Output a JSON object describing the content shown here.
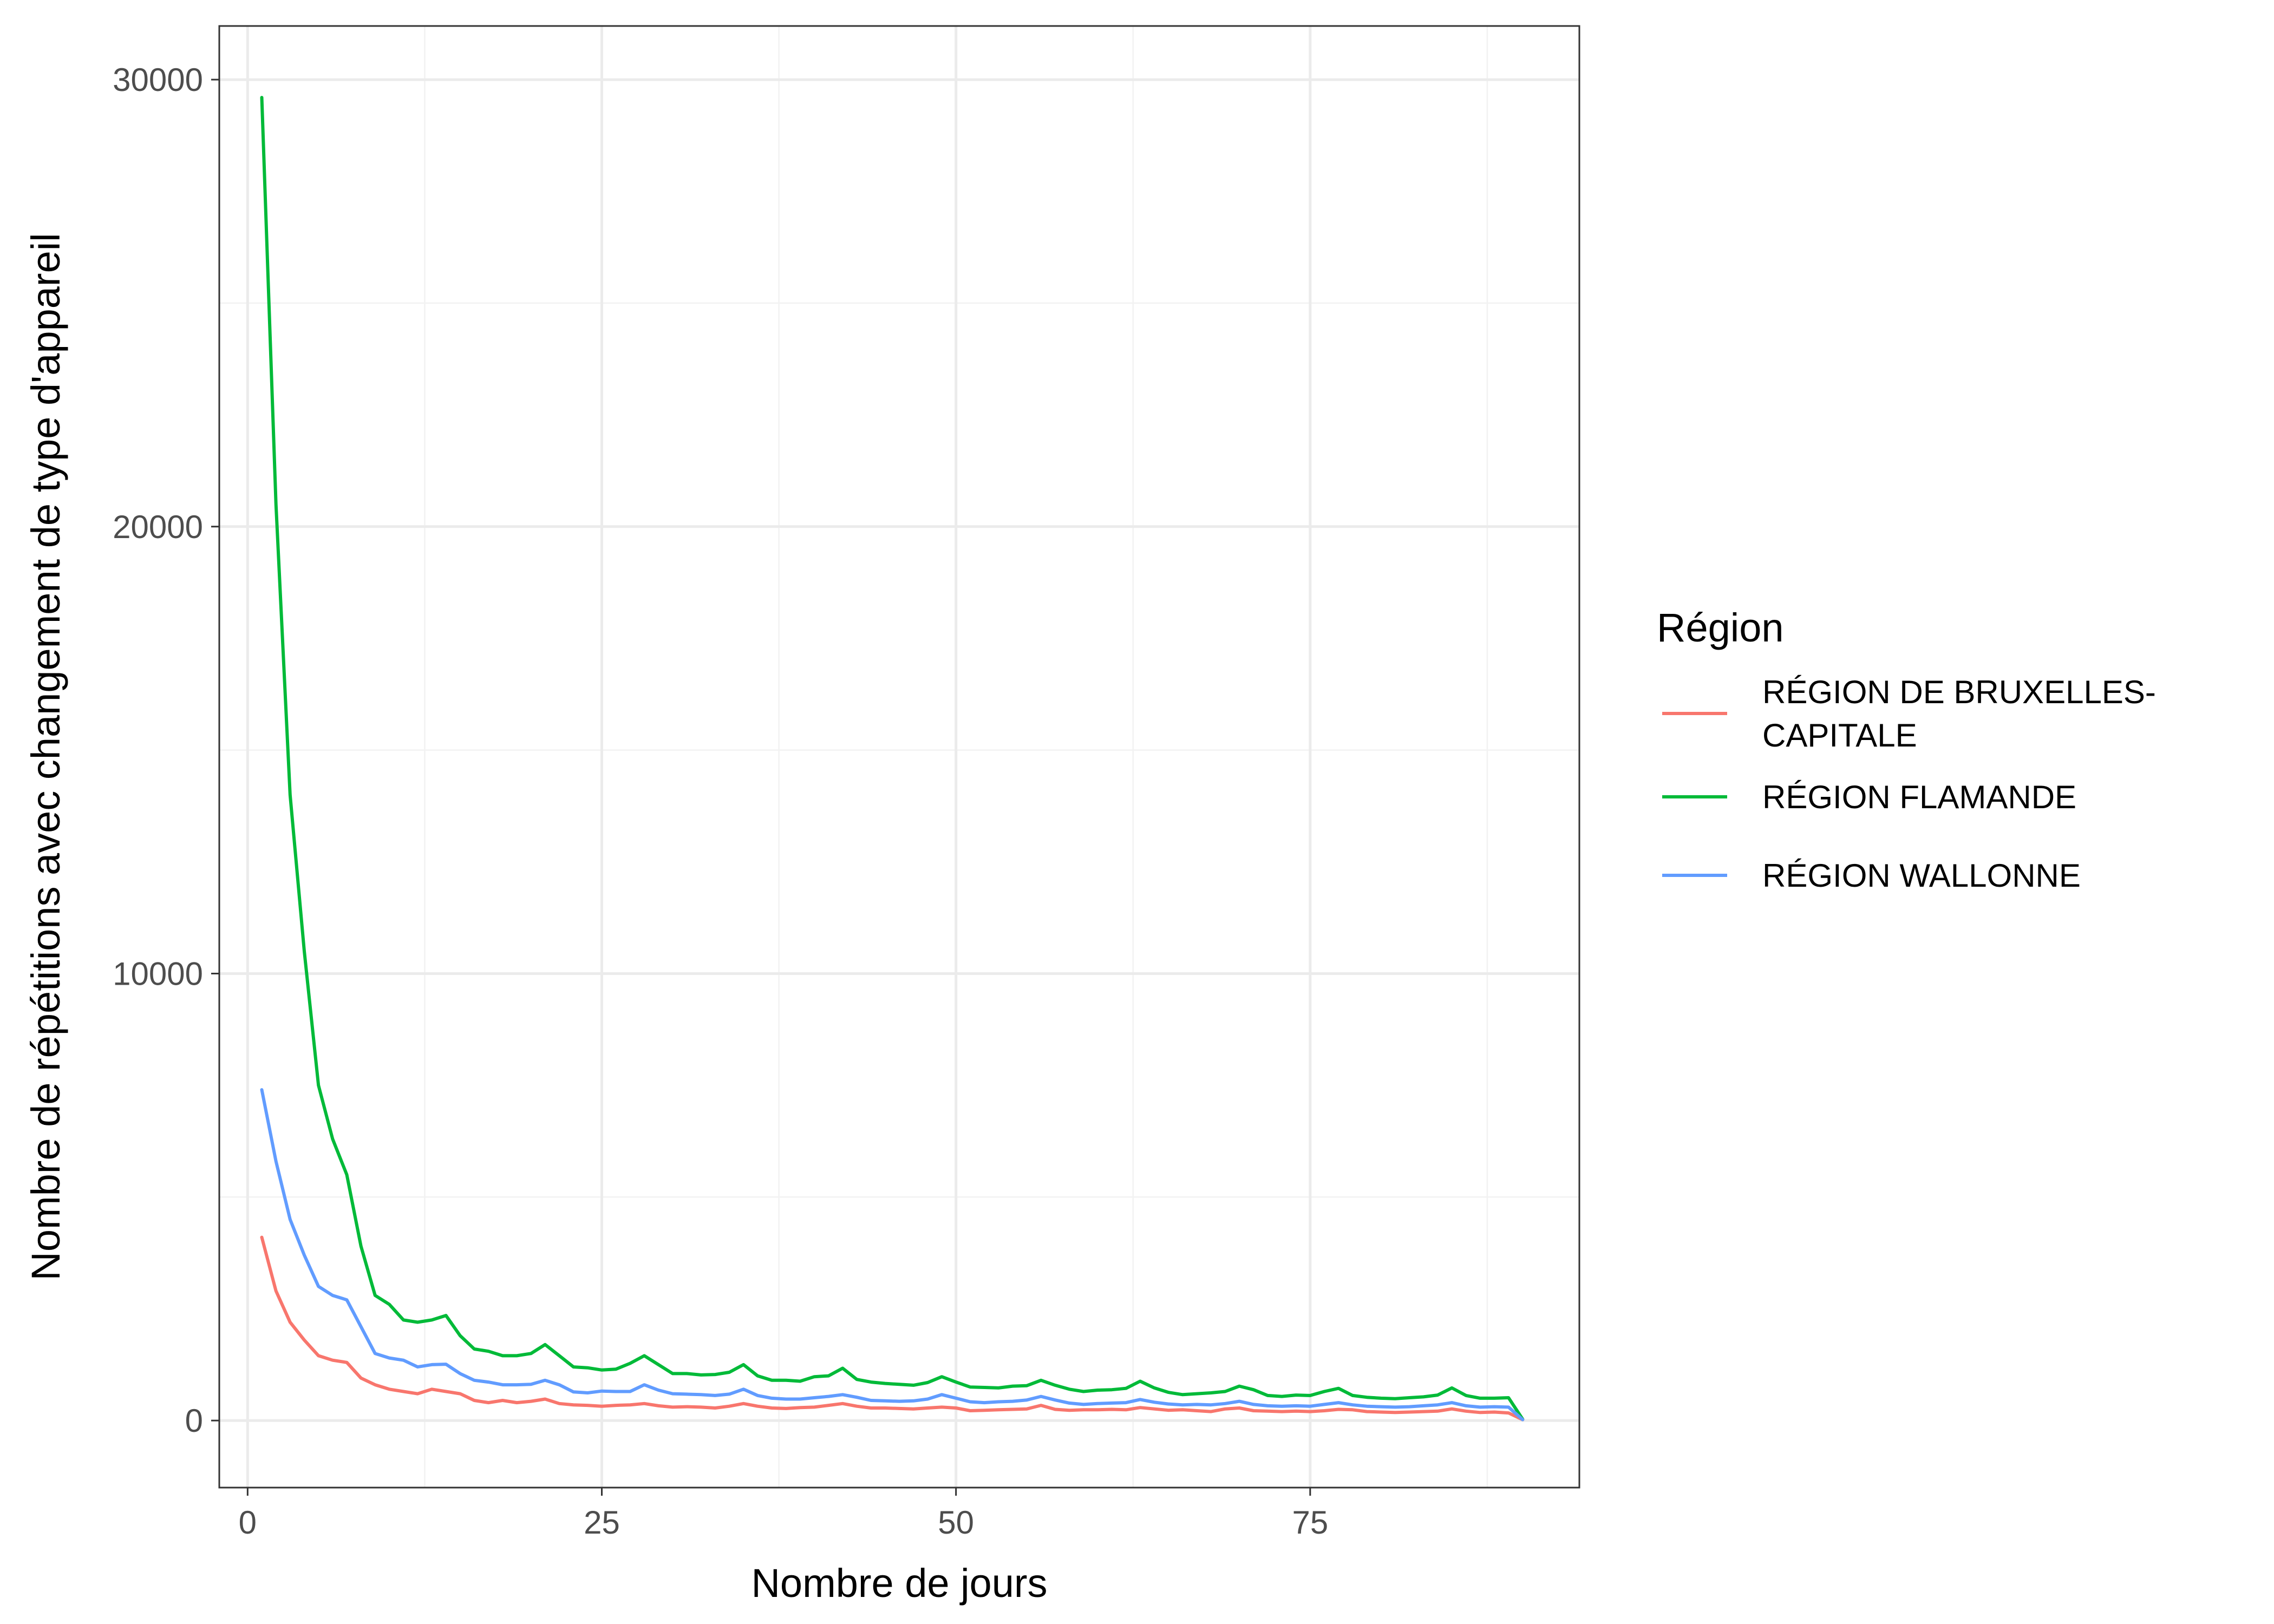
{
  "chart_data": {
    "type": "line",
    "xlabel": "Nombre de jours",
    "ylabel": "Nombre de répétitions avec changement de type d'appareil",
    "xlim": [
      -2,
      94
    ],
    "ylim": [
      -1500,
      31200
    ],
    "x_ticks": [
      0,
      25,
      50,
      75
    ],
    "x_minor_ticks": [
      12.5,
      37.5,
      62.5,
      87.5
    ],
    "y_ticks": [
      0,
      10000,
      20000,
      30000
    ],
    "y_minor_ticks": [
      5000,
      15000,
      25000
    ],
    "grid": true,
    "legend": {
      "title": "Région",
      "position": "right"
    },
    "series": [
      {
        "name": "RÉGION DE BRUXELLES-CAPITALE",
        "label_lines": [
          "RÉGION DE BRUXELLES-",
          "CAPITALE"
        ],
        "color": "#F8766D",
        "x": [
          1,
          2,
          3,
          4,
          5,
          6,
          7,
          8,
          9,
          10,
          11,
          12,
          13,
          14,
          15,
          16,
          17,
          18,
          19,
          20,
          21,
          22,
          23,
          24,
          25,
          26,
          27,
          28,
          29,
          30,
          31,
          32,
          33,
          34,
          35,
          36,
          37,
          38,
          39,
          40,
          41,
          42,
          43,
          44,
          45,
          46,
          47,
          48,
          49,
          50,
          51,
          52,
          53,
          54,
          55,
          56,
          57,
          58,
          59,
          60,
          61,
          62,
          63,
          64,
          65,
          66,
          67,
          68,
          69,
          70,
          71,
          72,
          73,
          74,
          75,
          76,
          77,
          78,
          79,
          80,
          81,
          82,
          83,
          84,
          85,
          86,
          87,
          88,
          89,
          90
        ],
        "y": [
          4100,
          2900,
          2200,
          1800,
          1450,
          1350,
          1300,
          950,
          800,
          700,
          650,
          600,
          700,
          650,
          600,
          450,
          400,
          450,
          400,
          430,
          480,
          380,
          350,
          340,
          320,
          340,
          350,
          380,
          330,
          300,
          310,
          300,
          280,
          320,
          380,
          320,
          280,
          270,
          290,
          300,
          340,
          380,
          320,
          280,
          280,
          270,
          260,
          280,
          300,
          280,
          220,
          230,
          240,
          250,
          260,
          340,
          250,
          230,
          240,
          240,
          250,
          240,
          290,
          260,
          230,
          240,
          220,
          200,
          260,
          280,
          220,
          210,
          200,
          210,
          200,
          220,
          250,
          240,
          200,
          190,
          180,
          190,
          200,
          210,
          260,
          210,
          180,
          190,
          170,
          20
        ]
      },
      {
        "name": "RÉGION FLAMANDE",
        "label_lines": [
          "RÉGION FLAMANDE"
        ],
        "color": "#00BA38",
        "x": [
          1,
          2,
          3,
          4,
          5,
          6,
          7,
          8,
          9,
          10,
          11,
          12,
          13,
          14,
          15,
          16,
          17,
          18,
          19,
          20,
          21,
          22,
          23,
          24,
          25,
          26,
          27,
          28,
          29,
          30,
          31,
          32,
          33,
          34,
          35,
          36,
          37,
          38,
          39,
          40,
          41,
          42,
          43,
          44,
          45,
          46,
          47,
          48,
          49,
          50,
          51,
          52,
          53,
          54,
          55,
          56,
          57,
          58,
          59,
          60,
          61,
          62,
          63,
          64,
          65,
          66,
          67,
          68,
          69,
          70,
          71,
          72,
          73,
          74,
          75,
          76,
          77,
          78,
          79,
          80,
          81,
          82,
          83,
          84,
          85,
          86,
          87,
          88,
          89,
          90
        ],
        "y": [
          29600,
          20500,
          14000,
          10500,
          7500,
          6300,
          5500,
          3900,
          2800,
          2600,
          2250,
          2200,
          2250,
          2350,
          1900,
          1600,
          1550,
          1450,
          1450,
          1500,
          1700,
          1450,
          1200,
          1180,
          1130,
          1150,
          1280,
          1450,
          1250,
          1050,
          1050,
          1020,
          1030,
          1080,
          1250,
          1000,
          900,
          900,
          880,
          980,
          1000,
          1170,
          920,
          860,
          830,
          810,
          790,
          850,
          980,
          860,
          750,
          740,
          730,
          770,
          780,
          900,
          790,
          700,
          650,
          680,
          690,
          720,
          880,
          730,
          630,
          580,
          600,
          620,
          650,
          770,
          690,
          560,
          540,
          570,
          560,
          650,
          720,
          560,
          520,
          500,
          490,
          510,
          530,
          570,
          730,
          560,
          500,
          500,
          510,
          30
        ]
      },
      {
        "name": "RÉGION WALLONNE",
        "label_lines": [
          "RÉGION WALLONNE"
        ],
        "color": "#619CFF",
        "x": [
          1,
          2,
          3,
          4,
          5,
          6,
          7,
          8,
          9,
          10,
          11,
          12,
          13,
          14,
          15,
          16,
          17,
          18,
          19,
          20,
          21,
          22,
          23,
          24,
          25,
          26,
          27,
          28,
          29,
          30,
          31,
          32,
          33,
          34,
          35,
          36,
          37,
          38,
          39,
          40,
          41,
          42,
          43,
          44,
          45,
          46,
          47,
          48,
          49,
          50,
          51,
          52,
          53,
          54,
          55,
          56,
          57,
          58,
          59,
          60,
          61,
          62,
          63,
          64,
          65,
          66,
          67,
          68,
          69,
          70,
          71,
          72,
          73,
          74,
          75,
          76,
          77,
          78,
          79,
          80,
          81,
          82,
          83,
          84,
          85,
          86,
          87,
          88,
          89,
          90
        ],
        "y": [
          7400,
          5800,
          4500,
          3700,
          3000,
          2800,
          2700,
          2100,
          1500,
          1400,
          1350,
          1200,
          1250,
          1260,
          1050,
          900,
          860,
          800,
          800,
          810,
          900,
          800,
          640,
          620,
          660,
          650,
          650,
          800,
          680,
          600,
          590,
          580,
          560,
          590,
          700,
          560,
          500,
          480,
          480,
          510,
          540,
          580,
          520,
          450,
          440,
          430,
          440,
          480,
          580,
          500,
          420,
          400,
          420,
          430,
          460,
          540,
          460,
          390,
          360,
          380,
          390,
          400,
          470,
          410,
          370,
          350,
          360,
          350,
          380,
          430,
          360,
          330,
          320,
          330,
          320,
          360,
          400,
          350,
          320,
          310,
          300,
          310,
          330,
          350,
          400,
          330,
          300,
          310,
          300,
          20
        ]
      }
    ]
  }
}
